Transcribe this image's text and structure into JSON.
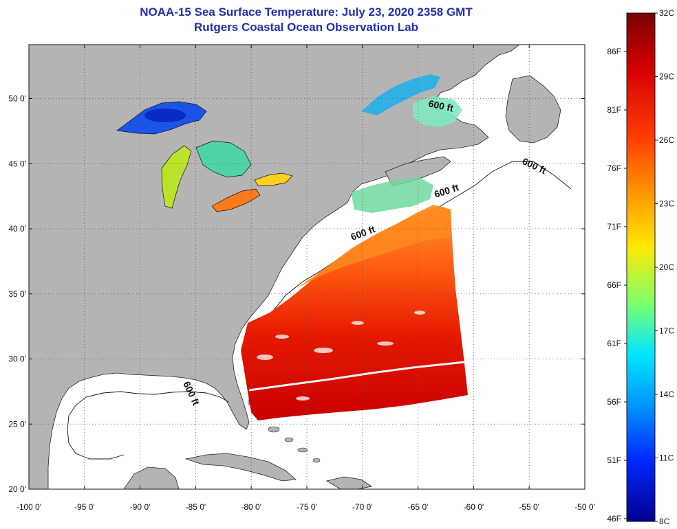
{
  "header": {
    "title": "NOAA-15 Sea Surface Temperature:  July 23, 2020 2358 GMT",
    "subtitle": "Rutgers Coastal Ocean Observation Lab"
  },
  "map": {
    "lon_labels": [
      "-100 0'",
      "-95 0'",
      "-90 0'",
      "-85 0'",
      "-80 0'",
      "-75 0'",
      "-70 0'",
      "-65 0'",
      "-60 0'",
      "-55 0'",
      "-50 0'"
    ],
    "lat_labels": [
      "50 0'",
      "45 0'",
      "40 0'",
      "35 0'",
      "30 0'",
      "25 0'",
      "20 0'"
    ],
    "contour_label": "600 ft",
    "land_color": "#b4b4b4",
    "ocean_color": "#ffffff"
  },
  "colorbar": {
    "celsius": [
      "32C",
      "29C",
      "26C",
      "23C",
      "20C",
      "17C",
      "14C",
      "11C",
      "8C"
    ],
    "fahrenheit": [
      "86F",
      "81F",
      "76F",
      "71F",
      "66F",
      "61F",
      "56F",
      "51F",
      "46F"
    ],
    "stops": [
      "#7a0000",
      "#d40000",
      "#ff3a00",
      "#ff9a00",
      "#ffe800",
      "#7dff6a",
      "#00e8ff",
      "#0096ff",
      "#0028ff",
      "#00008f"
    ]
  }
}
